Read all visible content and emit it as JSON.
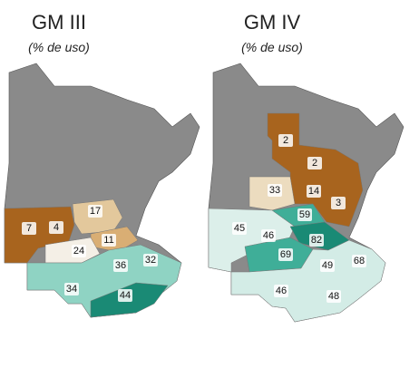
{
  "panels": [
    {
      "title": "GM III",
      "subtitle": "(% de uso)",
      "regions": [
        {
          "label": 17
        },
        {
          "label": 7
        },
        {
          "label": 4
        },
        {
          "label": 24
        },
        {
          "label": 11
        },
        {
          "label": 36
        },
        {
          "label": 32
        },
        {
          "label": 34
        },
        {
          "label": 44
        }
      ]
    },
    {
      "title": "GM IV",
      "subtitle": "(% de uso)",
      "regions": [
        {
          "label": 2
        },
        {
          "label": 2
        },
        {
          "label": 33
        },
        {
          "label": 14
        },
        {
          "label": 3
        },
        {
          "label": 59
        },
        {
          "label": 45
        },
        {
          "label": 46
        },
        {
          "label": 82
        },
        {
          "label": 69
        },
        {
          "label": 49
        },
        {
          "label": 68
        },
        {
          "label": 46
        },
        {
          "label": 48
        }
      ]
    }
  ]
}
